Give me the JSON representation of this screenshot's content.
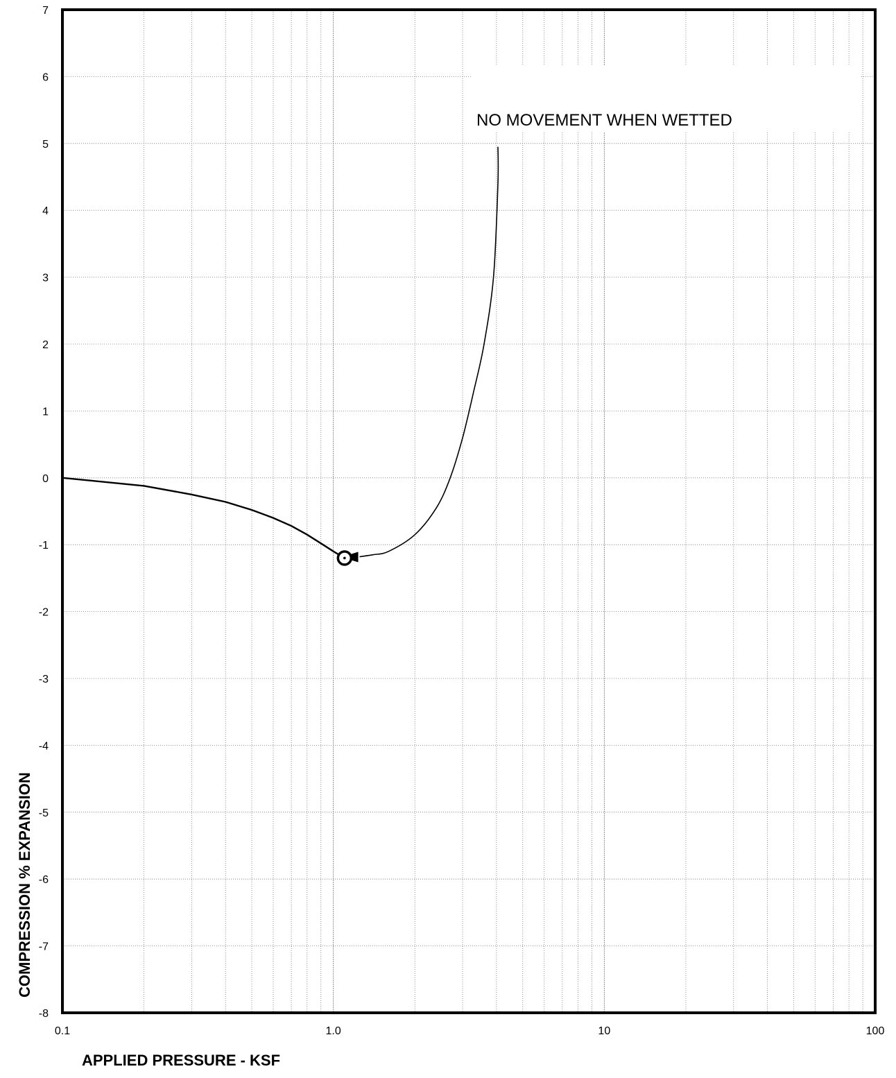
{
  "chart_data": {
    "type": "line",
    "title": "",
    "xlabel": "APPLIED PRESSURE - KSF",
    "ylabel": "COMPRESSION % EXPANSION",
    "x_scale": "log",
    "xlim": [
      0.1,
      100
    ],
    "ylim": [
      -8,
      7
    ],
    "x_ticks": [
      {
        "value": 0.1,
        "label": "0.1"
      },
      {
        "value": 1,
        "label": "1.0"
      },
      {
        "value": 10,
        "label": "10"
      },
      {
        "value": 100,
        "label": "100"
      }
    ],
    "y_ticks": [
      {
        "value": 7,
        "label": "7"
      },
      {
        "value": 6,
        "label": "6"
      },
      {
        "value": 5,
        "label": "5"
      },
      {
        "value": 4,
        "label": "4"
      },
      {
        "value": 3,
        "label": "3"
      },
      {
        "value": 2,
        "label": "2"
      },
      {
        "value": 1,
        "label": "1"
      },
      {
        "value": 0,
        "label": "0"
      },
      {
        "value": -1,
        "label": "-1"
      },
      {
        "value": -2,
        "label": "-2"
      },
      {
        "value": -3,
        "label": "-3"
      },
      {
        "value": -4,
        "label": "-4"
      },
      {
        "value": -5,
        "label": "-5"
      },
      {
        "value": -6,
        "label": "-6"
      },
      {
        "value": -7,
        "label": "-7"
      },
      {
        "value": -8,
        "label": "-8"
      }
    ],
    "grid": true,
    "series": [
      {
        "points": [
          {
            "x": 0.1,
            "y": 0
          },
          {
            "x": 0.2,
            "y": -0.12
          },
          {
            "x": 0.3,
            "y": -0.25
          },
          {
            "x": 0.4,
            "y": -0.36
          },
          {
            "x": 0.5,
            "y": -0.48
          },
          {
            "x": 0.6,
            "y": -0.6
          },
          {
            "x": 0.7,
            "y": -0.72
          },
          {
            "x": 0.8,
            "y": -0.85
          },
          {
            "x": 0.9,
            "y": -0.98
          },
          {
            "x": 1.0,
            "y": -1.1
          },
          {
            "x": 1.1,
            "y": -1.2
          }
        ]
      }
    ],
    "marker_point": {
      "x": 1.1,
      "y": -1.2
    },
    "rebound_curve": [
      {
        "x": 4.05,
        "y": 4.95
      },
      {
        "x": 4.05,
        "y": 4.4
      },
      {
        "x": 3.9,
        "y": 3.0
      },
      {
        "x": 3.6,
        "y": 2.0
      },
      {
        "x": 3.3,
        "y": 1.3
      },
      {
        "x": 3.0,
        "y": 0.6
      },
      {
        "x": 2.7,
        "y": 0.0
      },
      {
        "x": 2.4,
        "y": -0.45
      },
      {
        "x": 2.0,
        "y": -0.85
      },
      {
        "x": 1.6,
        "y": -1.1
      },
      {
        "x": 1.4,
        "y": -1.15
      },
      {
        "x": 1.25,
        "y": -1.18
      }
    ],
    "annotations": [
      {
        "text": "NO MOVEMENT WHEN WETTED",
        "x": 2.0,
        "y": 5.35
      }
    ]
  }
}
